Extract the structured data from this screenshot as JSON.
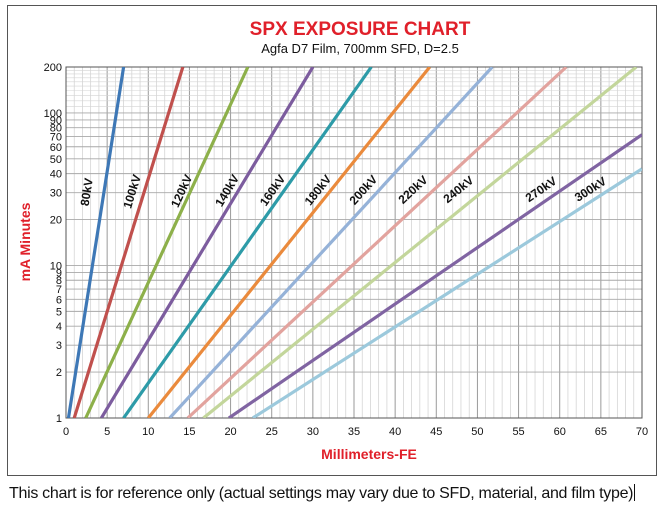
{
  "chart_data": {
    "type": "line",
    "title": "SPX EXPOSURE CHART",
    "subtitle": "Agfa D7 Film, 700mm SFD, D=2.5",
    "xlabel": "Millimeters-FE",
    "ylabel": "mA Minutes",
    "xlim": [
      0,
      70
    ],
    "ylim": [
      1,
      200
    ],
    "yscale": "log",
    "grid": true,
    "x_ticks": [
      "0",
      "5",
      "10",
      "15",
      "20",
      "25",
      "30",
      "35",
      "40",
      "45",
      "50",
      "55",
      "60",
      "65",
      "70"
    ],
    "y_ticks": [
      {
        "value": 1,
        "label": "1"
      },
      {
        "value": 2,
        "label": "2"
      },
      {
        "value": 3,
        "label": "3"
      },
      {
        "value": 4,
        "label": "4"
      },
      {
        "value": 5,
        "label": "5"
      },
      {
        "value": 6,
        "label": "6"
      },
      {
        "value": 7,
        "label": "7"
      },
      {
        "value": 8,
        "label": "8"
      },
      {
        "value": 9,
        "label": "9"
      },
      {
        "value": 10,
        "label": "10"
      },
      {
        "value": 20,
        "label": "20"
      },
      {
        "value": 30,
        "label": "30"
      },
      {
        "value": 40,
        "label": "40"
      },
      {
        "value": 50,
        "label": "50"
      },
      {
        "value": 60,
        "label": "60"
      },
      {
        "value": 70,
        "label": "70"
      },
      {
        "value": 80,
        "label": "80"
      },
      {
        "value": 90,
        "label": "90"
      },
      {
        "value": 100,
        "label": "100"
      },
      {
        "value": 200,
        "label": "200"
      }
    ],
    "series": [
      {
        "name": "80kV",
        "color": "#3e78b6",
        "points": [
          [
            0.3,
            1
          ],
          [
            7.0,
            200
          ]
        ],
        "label_at": [
          3.0,
          30
        ]
      },
      {
        "name": "100kV",
        "color": "#c0504d",
        "points": [
          [
            1.0,
            1
          ],
          [
            14.2,
            200
          ]
        ],
        "label_at": [
          8.5,
          30
        ]
      },
      {
        "name": "120kV",
        "color": "#8db04a",
        "points": [
          [
            2.4,
            1
          ],
          [
            22.1,
            200
          ]
        ],
        "label_at": [
          14.5,
          30
        ]
      },
      {
        "name": "140kV",
        "color": "#7c5c9e",
        "points": [
          [
            4.3,
            1
          ],
          [
            30.0,
            200
          ]
        ],
        "label_at": [
          20.0,
          30
        ]
      },
      {
        "name": "160kV",
        "color": "#2d9ba8",
        "points": [
          [
            7.0,
            1
          ],
          [
            37.1,
            200
          ]
        ],
        "label_at": [
          25.5,
          30
        ]
      },
      {
        "name": "180kV",
        "color": "#ea8a3c",
        "points": [
          [
            10.0,
            1
          ],
          [
            44.2,
            200
          ]
        ],
        "label_at": [
          31.0,
          30
        ]
      },
      {
        "name": "200kV",
        "color": "#95b2d8",
        "points": [
          [
            12.6,
            1
          ],
          [
            51.8,
            200
          ]
        ],
        "label_at": [
          36.5,
          30
        ]
      },
      {
        "name": "220kV",
        "color": "#e2a39e",
        "points": [
          [
            14.8,
            1
          ],
          [
            60.8,
            200
          ]
        ],
        "label_at": [
          42.5,
          30
        ]
      },
      {
        "name": "240kV",
        "color": "#c3d69b",
        "points": [
          [
            16.7,
            1
          ],
          [
            69.3,
            200
          ]
        ],
        "label_at": [
          48.0,
          30
        ]
      },
      {
        "name": "270kV",
        "color": "#8064a2",
        "points": [
          [
            19.8,
            1
          ],
          [
            70.0,
            72
          ]
        ],
        "label_at": [
          58.0,
          30
        ]
      },
      {
        "name": "300kV",
        "color": "#9cc9dc",
        "points": [
          [
            22.7,
            1
          ],
          [
            70.0,
            43
          ]
        ],
        "label_at": [
          64.0,
          30
        ]
      }
    ]
  },
  "footnote": "This chart is for reference only (actual settings may vary due to SFD, material, and film type)"
}
